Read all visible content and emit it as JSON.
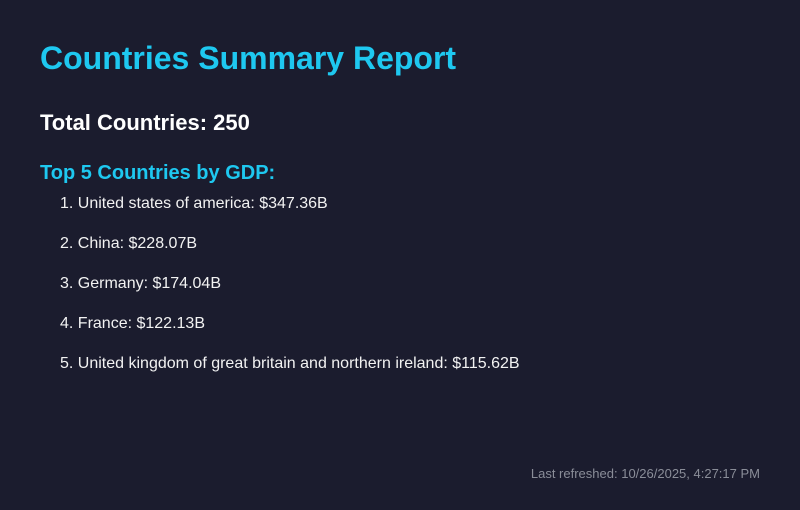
{
  "report": {
    "title": "Countries Summary Report",
    "total_label": "Total Countries:",
    "total_value": "250",
    "top_heading": "Top 5 Countries by GDP:",
    "top_countries": [
      {
        "rank": "1.",
        "name": "United states of america",
        "gdp": "$347.36B"
      },
      {
        "rank": "2.",
        "name": "China",
        "gdp": "$228.07B"
      },
      {
        "rank": "3.",
        "name": "Germany",
        "gdp": "$174.04B"
      },
      {
        "rank": "4.",
        "name": "France",
        "gdp": "$122.13B"
      },
      {
        "rank": "5.",
        "name": "United kingdom of great britain and northern ireland",
        "gdp": "$115.62B"
      }
    ],
    "last_refreshed_label": "Last refreshed:",
    "last_refreshed_value": "10/26/2025, 4:27:17 PM"
  },
  "colors": {
    "background": "#1b1c2e",
    "accent": "#1ec8f0",
    "text": "#ffffff",
    "muted": "#8a8d98"
  }
}
